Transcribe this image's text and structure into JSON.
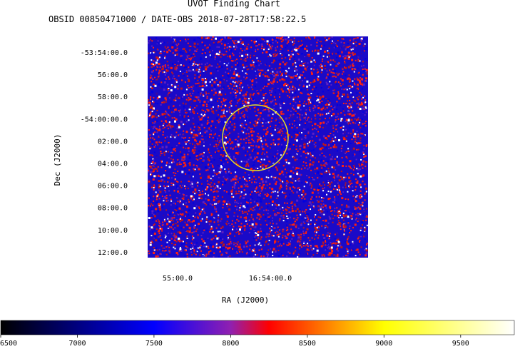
{
  "chart_data": {
    "type": "heatmap",
    "title": "UVOT Finding Chart",
    "subtitle": "OBSID 00850471000 / DATE-OBS 2018-07-28T17:58:22.5",
    "xlabel": "RA (J2000)",
    "ylabel": "Dec (J2000)",
    "x_tick_labels": [
      "55:00.0",
      "16:54:00.0"
    ],
    "y_tick_labels": [
      "-53:54:00.0",
      "56:00.0",
      "58:00.0",
      "-54:00:00.0",
      "02:00.0",
      "04:00.0",
      "06:00.0",
      "08:00.0",
      "10:00.0",
      "12:00.0"
    ],
    "annotation": {
      "shape": "circle",
      "color": "#e8e020"
    },
    "colorbar": {
      "tick_labels": [
        "6500",
        "7000",
        "7500",
        "8000",
        "8500",
        "9000",
        "9500"
      ],
      "tick_values": [
        6500,
        7000,
        7500,
        8000,
        8500,
        9000,
        9500
      ],
      "range": [
        6500,
        9850
      ],
      "stops": [
        {
          "value": 6500,
          "color": "#000000"
        },
        {
          "value": 7500,
          "color": "#0000ff"
        },
        {
          "value": 8000,
          "color": "#9020b0"
        },
        {
          "value": 8250,
          "color": "#ff0000"
        },
        {
          "value": 9000,
          "color": "#ffff00"
        },
        {
          "value": 9850,
          "color": "#ffffff"
        }
      ]
    }
  }
}
